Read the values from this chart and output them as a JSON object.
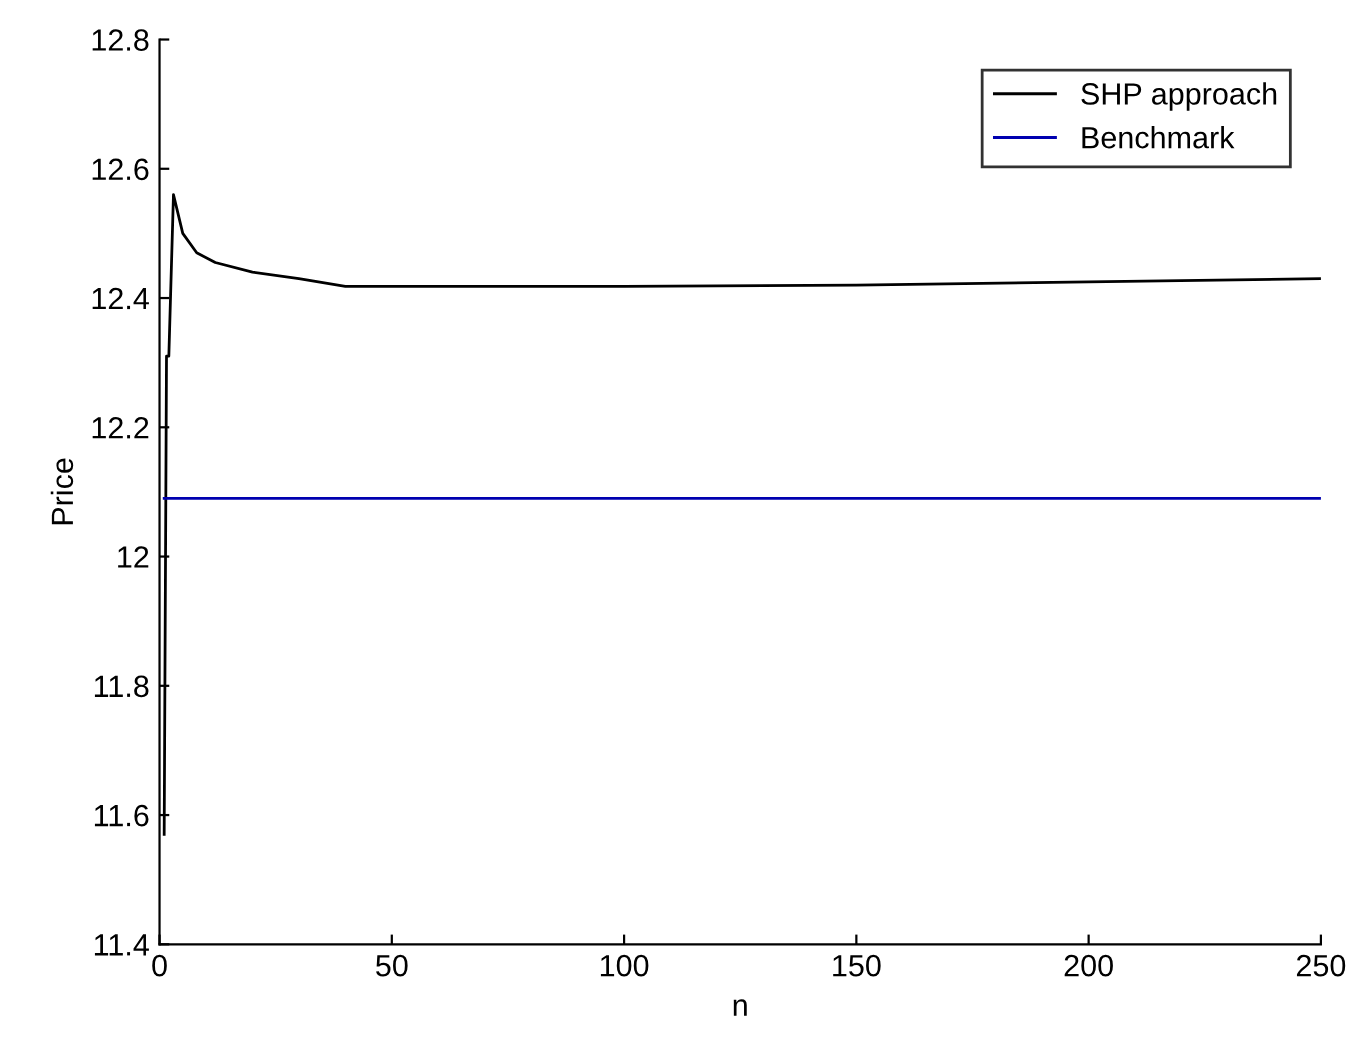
{
  "chart_data": {
    "type": "line",
    "xlabel": "n",
    "ylabel": "Price",
    "xlim": [
      0,
      250
    ],
    "xticks": [
      0,
      50,
      100,
      150,
      200,
      250
    ],
    "ylim": [
      11.4,
      12.8
    ],
    "yticks": [
      11.4,
      11.6,
      11.8,
      12,
      12.2,
      12.4,
      12.6,
      12.8
    ],
    "grid": false,
    "legend": "top right",
    "series": [
      {
        "name": "SHP approach",
        "color": "#000000",
        "x": [
          1,
          1.5,
          2,
          3,
          5,
          8,
          12,
          20,
          30,
          40,
          100,
          150,
          200,
          250
        ],
        "values": [
          11.57,
          12.31,
          12.31,
          12.56,
          12.5,
          12.47,
          12.455,
          12.44,
          12.43,
          12.418,
          12.418,
          12.42,
          12.425,
          12.43
        ]
      },
      {
        "name": "Benchmark",
        "color": "#0000b0",
        "x": [
          1,
          250
        ],
        "values": [
          12.09,
          12.09
        ]
      }
    ]
  }
}
